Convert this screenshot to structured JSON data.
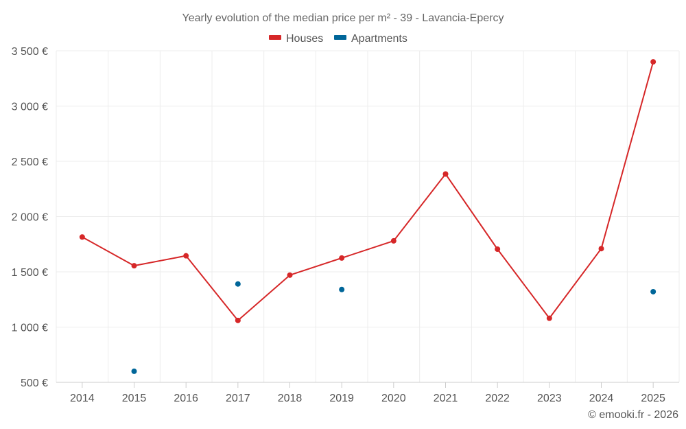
{
  "chart_data": {
    "type": "line",
    "title": "Yearly evolution of the median price per m² - 39 - Lavancia-Epercy",
    "categories": [
      "2014",
      "2015",
      "2016",
      "2017",
      "2018",
      "2019",
      "2020",
      "2021",
      "2022",
      "2023",
      "2024",
      "2025"
    ],
    "series": [
      {
        "name": "Houses",
        "color": "#d62728",
        "display": "line+markers",
        "values": [
          1815,
          1555,
          1645,
          1060,
          1470,
          1625,
          1780,
          2385,
          1705,
          1080,
          1710,
          3400
        ]
      },
      {
        "name": "Apartments",
        "color": "#006699",
        "display": "markers",
        "values": [
          null,
          600,
          null,
          1390,
          null,
          1340,
          null,
          null,
          null,
          null,
          null,
          1320
        ]
      }
    ],
    "y_ticks": [
      {
        "value": 500,
        "label": "500 €"
      },
      {
        "value": 1000,
        "label": "1 000 €"
      },
      {
        "value": 1500,
        "label": "1 500 €"
      },
      {
        "value": 2000,
        "label": "2 000 €"
      },
      {
        "value": 2500,
        "label": "2 500 €"
      },
      {
        "value": 3000,
        "label": "3 000 €"
      },
      {
        "value": 3500,
        "label": "3 500 €"
      }
    ],
    "ylim": [
      500,
      3500
    ],
    "xlabel": "",
    "ylabel": "",
    "grid": true,
    "legend_position": "top-center"
  },
  "credit": "© emooki.fr - 2026"
}
